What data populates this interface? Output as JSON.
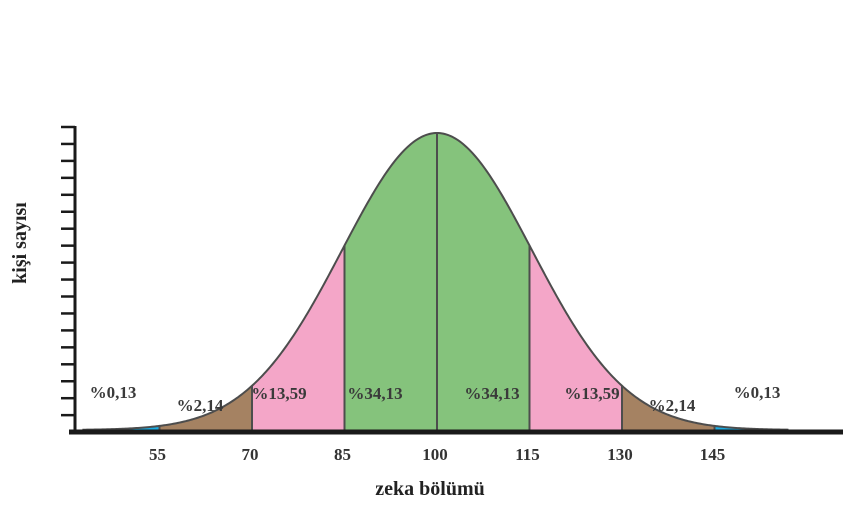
{
  "chart_data": {
    "type": "area",
    "title": "",
    "xlabel": "zeka bölümü",
    "ylabel": "kişi sayısı",
    "distribution": "normal",
    "mean": 100,
    "std_dev": 15,
    "x_ticks": [
      55,
      70,
      85,
      100,
      115,
      130,
      145
    ],
    "x_tick_labels": [
      "55",
      "70",
      "85",
      "100",
      "115",
      "130",
      "145"
    ],
    "y_ticks_count": 18,
    "y_tick_labels": [],
    "segments": [
      {
        "range": [
          "<55",
          "55"
        ],
        "label": "%0,13",
        "value": 0.13,
        "color": "#1aace3"
      },
      {
        "range": [
          "55",
          "70"
        ],
        "label": "%2,14",
        "value": 2.14,
        "color": "#a58262"
      },
      {
        "range": [
          "70",
          "85"
        ],
        "label": "%13,59",
        "value": 13.59,
        "color": "#f4a6c8"
      },
      {
        "range": [
          "85",
          "100"
        ],
        "label": "%34,13",
        "value": 34.13,
        "color": "#85c37c"
      },
      {
        "range": [
          "100",
          "115"
        ],
        "label": "%34,13",
        "value": 34.13,
        "color": "#85c37c"
      },
      {
        "range": [
          "115",
          "130"
        ],
        "label": "%13,59",
        "value": 13.59,
        "color": "#f4a6c8"
      },
      {
        "range": [
          "130",
          "145"
        ],
        "label": "%2,14",
        "value": 2.14,
        "color": "#a58262"
      },
      {
        "range": [
          "145",
          ">145"
        ],
        "label": "%0,13",
        "value": 0.13,
        "color": "#1aace3"
      }
    ],
    "grid": false,
    "legend": "none"
  }
}
